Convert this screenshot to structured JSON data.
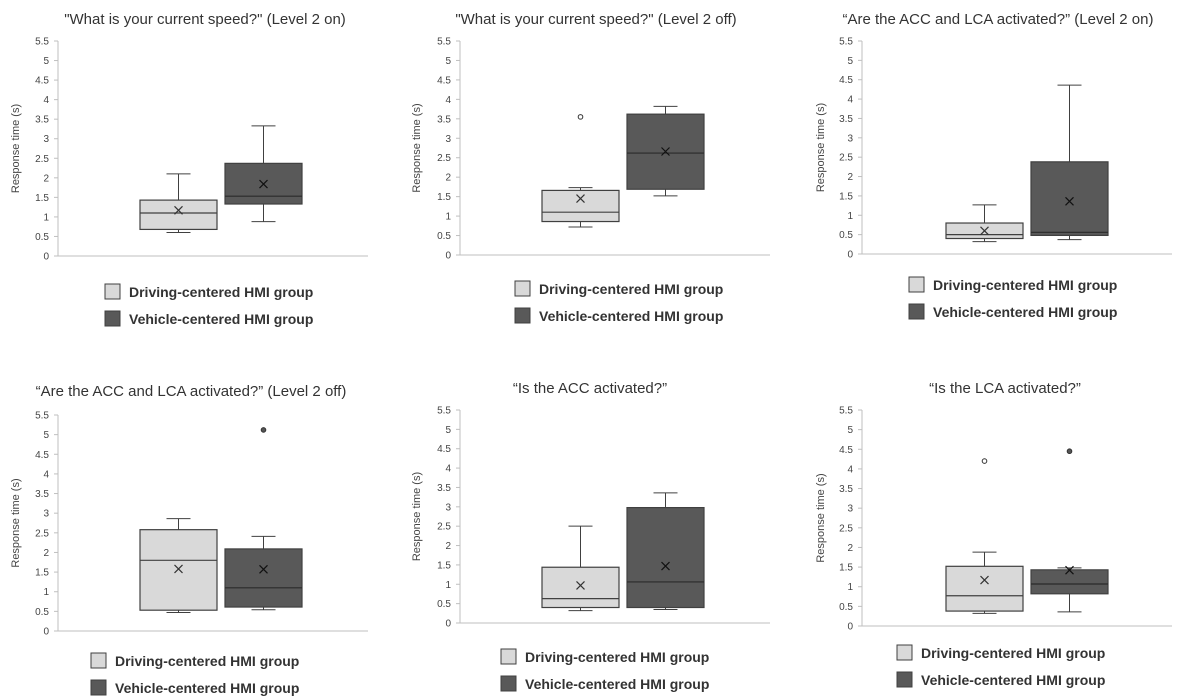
{
  "colors": {
    "driving": "#d9d9d9",
    "vehicle": "#595959",
    "stroke": "#404040",
    "axis": "#bfbfbf"
  },
  "chart_data": [
    {
      "type": "box",
      "title": "\"What is your current speed?\"  (Level 2 on)",
      "ylabel": "Response time (s)",
      "ylim": [
        0,
        5.5
      ],
      "yticks": [
        "0",
        "0.5",
        "1",
        "1.5",
        "2",
        "2.5",
        "3",
        "3.5",
        "4",
        "4.5",
        "5",
        "5.5"
      ],
      "legend": [
        "Driving-centered HMI group",
        "Vehicle-centered HMI group"
      ],
      "series": [
        {
          "name": "Driving-centered HMI group",
          "min": 0.6,
          "q1": 0.68,
          "median": 1.1,
          "q3": 1.43,
          "max": 2.1,
          "mean": 1.17,
          "outliers": []
        },
        {
          "name": "Vehicle-centered HMI group",
          "min": 0.88,
          "q1": 1.33,
          "median": 1.53,
          "q3": 2.37,
          "max": 3.33,
          "mean": 1.84,
          "outliers": []
        }
      ]
    },
    {
      "type": "box",
      "title": "\"What is your current speed?\"  (Level 2 off)",
      "ylabel": "Response time (s)",
      "ylim": [
        0,
        5.5
      ],
      "yticks": [
        "0",
        "0.5",
        "1",
        "1.5",
        "2",
        "2.5",
        "3",
        "3.5",
        "4",
        "4.5",
        "5",
        "5.5"
      ],
      "legend": [
        "Driving-centered HMI group",
        "Vehicle-centered HMI group"
      ],
      "series": [
        {
          "name": "Driving-centered HMI group",
          "min": 0.72,
          "q1": 0.86,
          "median": 1.1,
          "q3": 1.66,
          "max": 1.73,
          "mean": 1.45,
          "outliers": [
            3.55
          ]
        },
        {
          "name": "Vehicle-centered HMI group",
          "min": 1.52,
          "q1": 1.69,
          "median": 2.62,
          "q3": 3.62,
          "max": 3.82,
          "mean": 2.66,
          "outliers": []
        }
      ]
    },
    {
      "type": "box",
      "title": "“Are the ACC and LCA activated?” (Level 2 on)",
      "ylabel": "Response time (s)",
      "ylim": [
        0,
        5.5
      ],
      "yticks": [
        "0",
        "0.5",
        "1",
        "1.5",
        "2",
        "2.5",
        "3",
        "3.5",
        "4",
        "4.5",
        "5",
        "5.5"
      ],
      "legend": [
        "Driving-centered HMI group",
        "Vehicle-centered HMI group"
      ],
      "series": [
        {
          "name": "Driving-centered HMI group",
          "min": 0.32,
          "q1": 0.4,
          "median": 0.5,
          "q3": 0.8,
          "max": 1.27,
          "mean": 0.6,
          "outliers": []
        },
        {
          "name": "Vehicle-centered HMI group",
          "min": 0.37,
          "q1": 0.48,
          "median": 0.56,
          "q3": 2.38,
          "max": 4.36,
          "mean": 1.36,
          "outliers": []
        }
      ]
    },
    {
      "type": "box",
      "title": "“Are the ACC and LCA activated?” (Level 2 off)",
      "ylabel": "Response time (s)",
      "ylim": [
        0,
        5.5
      ],
      "yticks": [
        "0",
        "0.5",
        "1",
        "1.5",
        "2",
        "2.5",
        "3",
        "3.5",
        "4",
        "4.5",
        "5",
        "5.5"
      ],
      "legend": [
        "Driving-centered HMI group",
        "Vehicle-centered HMI group"
      ],
      "series": [
        {
          "name": "Driving-centered HMI group",
          "min": 0.47,
          "q1": 0.53,
          "median": 1.8,
          "q3": 2.58,
          "max": 2.86,
          "mean": 1.58,
          "outliers": []
        },
        {
          "name": "Vehicle-centered HMI group",
          "min": 0.54,
          "q1": 0.61,
          "median": 1.1,
          "q3": 2.09,
          "max": 2.41,
          "mean": 1.57,
          "outliers": [
            5.12
          ]
        }
      ]
    },
    {
      "type": "box",
      "title": "“Is the ACC activated?”",
      "ylabel": "Response time (s)",
      "ylim": [
        0,
        5.5
      ],
      "yticks": [
        "0",
        "0.5",
        "1",
        "1.5",
        "2",
        "2.5",
        "3",
        "3.5",
        "4",
        "4.5",
        "5",
        "5.5"
      ],
      "legend": [
        "Driving-centered HMI group",
        "Vehicle-centered HMI group"
      ],
      "series": [
        {
          "name": "Driving-centered HMI group",
          "min": 0.32,
          "q1": 0.4,
          "median": 0.63,
          "q3": 1.44,
          "max": 2.5,
          "mean": 0.97,
          "outliers": []
        },
        {
          "name": "Vehicle-centered HMI group",
          "min": 0.35,
          "q1": 0.4,
          "median": 1.06,
          "q3": 2.98,
          "max": 3.36,
          "mean": 1.47,
          "outliers": []
        }
      ]
    },
    {
      "type": "box",
      "title": "“Is the LCA activated?”",
      "ylabel": "Response time (s)",
      "ylim": [
        0,
        5.5
      ],
      "yticks": [
        "0",
        "0.5",
        "1",
        "1.5",
        "2",
        "2.5",
        "3",
        "3.5",
        "4",
        "4.5",
        "5",
        "5.5"
      ],
      "legend": [
        "Driving-centered HMI group",
        "Vehicle-centered HMI group"
      ],
      "series": [
        {
          "name": "Driving-centered HMI group",
          "min": 0.32,
          "q1": 0.38,
          "median": 0.77,
          "q3": 1.52,
          "max": 1.88,
          "mean": 1.17,
          "outliers": [
            4.2
          ]
        },
        {
          "name": "Vehicle-centered HMI group",
          "min": 0.36,
          "q1": 0.82,
          "median": 1.07,
          "q3": 1.43,
          "max": 1.48,
          "mean": 1.42,
          "outliers": [
            4.45
          ]
        }
      ]
    }
  ]
}
